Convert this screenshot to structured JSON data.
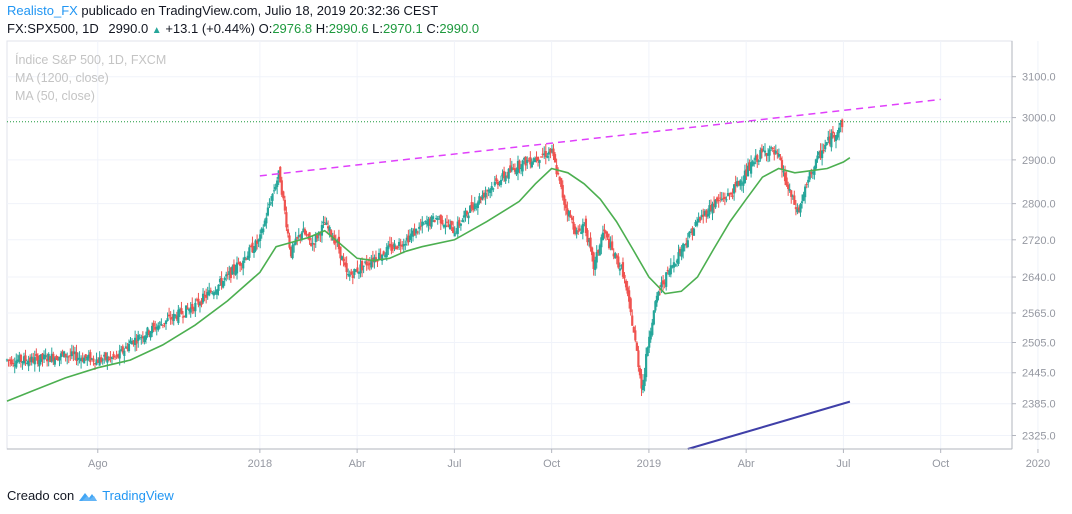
{
  "header": {
    "author": "Realisto_FX",
    "published_text": " publicado en TradingView.com, Julio 18, 2019 20:32:36 CEST",
    "symbol": "FX:SPX500, 1D",
    "last": "2990.0",
    "change": "+13.1 (+0.44%)",
    "open_label": "O:",
    "open": "2976.8",
    "high_label": "H:",
    "high": "2990.6",
    "low_label": "L:",
    "low": "2970.1",
    "close_label": "C:",
    "close": "2990.0"
  },
  "legend": {
    "main": "Índice S&P 500, 1D, FXCM",
    "ma1": "MA (1200, close)",
    "ma2": "MA (50, close)"
  },
  "footer": {
    "created_with": "Creado con",
    "brand": "TradingView"
  },
  "colors": {
    "up": "#26a69a",
    "down": "#ef5350",
    "ma50": "#4caf50",
    "trendline_top": "#e040fb",
    "trendline_bottom": "#3f3fa8",
    "current_price_line": "#1e9a3e",
    "grid": "#f0f3fa",
    "axis_text": "#9598a1"
  },
  "chart_data": {
    "type": "candlestick",
    "symbol": "FX:SPX500",
    "timeframe": "1D",
    "y_axis_labels": [
      "3100.0",
      "3000.0",
      "2900.0",
      "2800.0",
      "2720.0",
      "2640.0",
      "2565.0",
      "2505.0",
      "2445.0",
      "2385.0",
      "2325.0"
    ],
    "y_axis_values": [
      3100,
      3000,
      2900,
      2800,
      2720,
      2640,
      2565,
      2505,
      2445,
      2385,
      2325
    ],
    "x_axis_labels": [
      "Ago",
      "2018",
      "Abr",
      "Jul",
      "Oct",
      "2019",
      "Abr",
      "Jul",
      "Oct",
      "2020"
    ],
    "x_axis_months": [
      10,
      15,
      18,
      21,
      24,
      27,
      30,
      33,
      36,
      39
    ],
    "x_range_months": [
      7.2,
      38.2
    ],
    "y_scale": "log",
    "y_range": [
      2300,
      3190
    ],
    "current_price": 2990.0,
    "price_path": [
      [
        7.2,
        2470
      ],
      [
        8.0,
        2470
      ],
      [
        9.0,
        2480
      ],
      [
        10.0,
        2470
      ],
      [
        10.6,
        2475
      ],
      [
        11.0,
        2505
      ],
      [
        12.0,
        2545
      ],
      [
        13.0,
        2580
      ],
      [
        14.0,
        2640
      ],
      [
        14.5,
        2680
      ],
      [
        15.0,
        2720
      ],
      [
        15.3,
        2800
      ],
      [
        15.6,
        2870
      ],
      [
        15.95,
        2690
      ],
      [
        16.3,
        2740
      ],
      [
        16.6,
        2710
      ],
      [
        17.0,
        2755
      ],
      [
        17.4,
        2710
      ],
      [
        17.7,
        2640
      ],
      [
        18.0,
        2655
      ],
      [
        18.5,
        2680
      ],
      [
        19.0,
        2700
      ],
      [
        19.5,
        2720
      ],
      [
        20.0,
        2750
      ],
      [
        20.5,
        2770
      ],
      [
        21.0,
        2740
      ],
      [
        21.5,
        2790
      ],
      [
        22.0,
        2830
      ],
      [
        22.5,
        2860
      ],
      [
        23.0,
        2890
      ],
      [
        23.5,
        2905
      ],
      [
        24.0,
        2920
      ],
      [
        24.4,
        2800
      ],
      [
        24.8,
        2730
      ],
      [
        25.0,
        2760
      ],
      [
        25.3,
        2660
      ],
      [
        25.6,
        2740
      ],
      [
        25.9,
        2690
      ],
      [
        26.2,
        2650
      ],
      [
        26.5,
        2540
      ],
      [
        26.8,
        2410
      ],
      [
        27.0,
        2520
      ],
      [
        27.3,
        2610
      ],
      [
        27.6,
        2650
      ],
      [
        28.0,
        2700
      ],
      [
        28.5,
        2760
      ],
      [
        29.0,
        2800
      ],
      [
        29.5,
        2820
      ],
      [
        30.0,
        2870
      ],
      [
        30.4,
        2910
      ],
      [
        30.7,
        2925
      ],
      [
        31.0,
        2905
      ],
      [
        31.3,
        2830
      ],
      [
        31.6,
        2780
      ],
      [
        32.0,
        2870
      ],
      [
        32.4,
        2930
      ],
      [
        32.8,
        2970
      ],
      [
        33.0,
        2990
      ]
    ],
    "ma50_path": [
      [
        7.2,
        2390
      ],
      [
        8.0,
        2410
      ],
      [
        9.0,
        2435
      ],
      [
        10.0,
        2455
      ],
      [
        11.0,
        2470
      ],
      [
        12.0,
        2500
      ],
      [
        13.0,
        2540
      ],
      [
        14.0,
        2590
      ],
      [
        15.0,
        2650
      ],
      [
        15.5,
        2705
      ],
      [
        16.0,
        2715
      ],
      [
        16.5,
        2725
      ],
      [
        17.0,
        2740
      ],
      [
        17.5,
        2710
      ],
      [
        18.0,
        2680
      ],
      [
        18.5,
        2675
      ],
      [
        19.0,
        2680
      ],
      [
        19.5,
        2695
      ],
      [
        20.0,
        2705
      ],
      [
        21.0,
        2720
      ],
      [
        22.0,
        2760
      ],
      [
        23.0,
        2805
      ],
      [
        23.5,
        2845
      ],
      [
        24.0,
        2880
      ],
      [
        24.5,
        2870
      ],
      [
        25.0,
        2845
      ],
      [
        25.5,
        2810
      ],
      [
        26.0,
        2760
      ],
      [
        26.5,
        2700
      ],
      [
        27.0,
        2640
      ],
      [
        27.5,
        2605
      ],
      [
        28.0,
        2610
      ],
      [
        28.5,
        2640
      ],
      [
        29.0,
        2700
      ],
      [
        29.5,
        2760
      ],
      [
        30.0,
        2810
      ],
      [
        30.5,
        2860
      ],
      [
        31.0,
        2880
      ],
      [
        31.5,
        2870
      ],
      [
        32.0,
        2875
      ],
      [
        32.5,
        2880
      ],
      [
        33.0,
        2895
      ],
      [
        33.2,
        2905
      ]
    ],
    "trendline_top": [
      [
        15.0,
        2863
      ],
      [
        36.0,
        3044
      ]
    ],
    "trendline_bottom": [
      [
        28.2,
        2300
      ],
      [
        33.2,
        2389
      ]
    ]
  }
}
